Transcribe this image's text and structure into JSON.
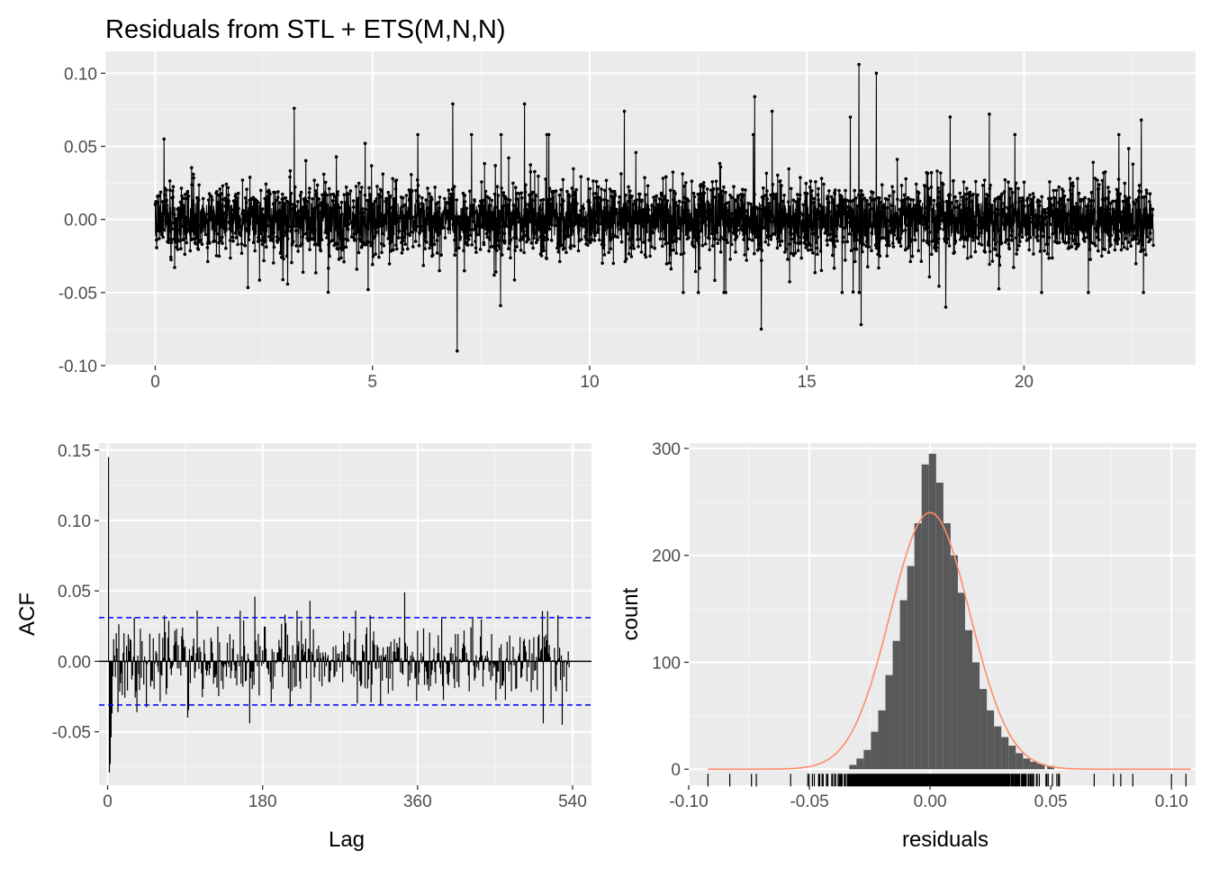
{
  "title": "Residuals from STL +  ETS(M,N,N)",
  "colors": {
    "panel_bg": "#ebebeb",
    "grid_major": "#ffffff",
    "grid_minor": "#f5f5f5",
    "series": "#000000",
    "ci_line": "#0000ff",
    "histogram_fill": "#595959",
    "density": "#ff8c69",
    "tick_text": "#4d4d4d"
  },
  "chart_data": [
    {
      "id": "residuals_series",
      "type": "line",
      "title": "Residuals from STL +  ETS(M,N,N)",
      "xlabel": "",
      "ylabel": "",
      "xlim": [
        -1.15,
        23.95
      ],
      "ylim": [
        -0.1,
        0.115
      ],
      "x_ticks": [
        0,
        5,
        10,
        15,
        20
      ],
      "x_tick_labels": [
        "0",
        "5",
        "10",
        "15",
        "20"
      ],
      "y_ticks": [
        -0.1,
        -0.05,
        0.0,
        0.05,
        0.1
      ],
      "y_tick_labels": [
        "-0.10",
        "-0.05",
        "0.00",
        "0.05",
        "0.10"
      ],
      "grid": true,
      "markers": true,
      "n_points": 5000,
      "x_range": [
        0,
        22.98
      ],
      "typical_spread": 0.02,
      "notable_points": [
        {
          "x": 0.2,
          "y": 0.055
        },
        {
          "x": 3.2,
          "y": 0.076
        },
        {
          "x": 4.9,
          "y": -0.048
        },
        {
          "x": 6.85,
          "y": 0.079
        },
        {
          "x": 6.95,
          "y": -0.09
        },
        {
          "x": 7.95,
          "y": -0.059
        },
        {
          "x": 8.5,
          "y": 0.079
        },
        {
          "x": 10.8,
          "y": 0.074
        },
        {
          "x": 13.8,
          "y": 0.084
        },
        {
          "x": 13.95,
          "y": -0.075
        },
        {
          "x": 14.2,
          "y": 0.074
        },
        {
          "x": 16.0,
          "y": 0.07
        },
        {
          "x": 16.2,
          "y": 0.106
        },
        {
          "x": 16.25,
          "y": -0.072
        },
        {
          "x": 16.6,
          "y": 0.1
        },
        {
          "x": 18.2,
          "y": -0.06
        },
        {
          "x": 18.3,
          "y": 0.07
        },
        {
          "x": 19.2,
          "y": 0.072
        },
        {
          "x": 22.7,
          "y": 0.068
        },
        {
          "x": 22.75,
          "y": -0.05
        }
      ]
    },
    {
      "id": "acf",
      "type": "bar",
      "xlabel": "Lag",
      "ylabel": "ACF",
      "xlim": [
        -10,
        562
      ],
      "ylim": [
        -0.088,
        0.155
      ],
      "x_ticks": [
        0,
        180,
        360,
        540
      ],
      "x_tick_labels": [
        "0",
        "180",
        "360",
        "540"
      ],
      "y_ticks": [
        -0.05,
        0.0,
        0.05,
        0.1,
        0.15
      ],
      "y_tick_labels": [
        "-0.05",
        "0.00",
        "0.05",
        "0.10",
        "0.15"
      ],
      "ci": [
        -0.031,
        0.031
      ],
      "grid": true,
      "max_lag": 536,
      "notable_values": [
        {
          "lag": 1,
          "acf": 0.145
        },
        {
          "lag": 2,
          "acf": -0.079
        },
        {
          "lag": 3,
          "acf": -0.073
        },
        {
          "lag": 4,
          "acf": -0.054
        },
        {
          "lag": 5,
          "acf": -0.037
        },
        {
          "lag": 31,
          "acf": 0.031
        },
        {
          "lag": 93,
          "acf": -0.04
        },
        {
          "lag": 165,
          "acf": -0.044
        },
        {
          "lag": 171,
          "acf": 0.046
        },
        {
          "lag": 235,
          "acf": 0.043
        },
        {
          "lag": 345,
          "acf": 0.049
        },
        {
          "lag": 506,
          "acf": -0.044
        },
        {
          "lag": 528,
          "acf": -0.045
        }
      ]
    },
    {
      "id": "histogram",
      "type": "bar",
      "xlabel": "residuals",
      "ylabel": "count",
      "xlim": [
        -0.1,
        0.11
      ],
      "ylim": [
        -15,
        305
      ],
      "x_ticks": [
        -0.1,
        -0.05,
        0.0,
        0.05,
        0.1
      ],
      "x_tick_labels": [
        "-0.10",
        "-0.05",
        "0.00",
        "0.05",
        "0.10"
      ],
      "y_ticks": [
        0,
        100,
        200,
        300
      ],
      "y_tick_labels": [
        "0",
        "100",
        "200",
        "300"
      ],
      "grid": true,
      "bins": [
        {
          "x": -0.032,
          "count": 4
        },
        {
          "x": -0.029,
          "count": 10
        },
        {
          "x": -0.026,
          "count": 18
        },
        {
          "x": -0.023,
          "count": 35
        },
        {
          "x": -0.02,
          "count": 55
        },
        {
          "x": -0.017,
          "count": 88
        },
        {
          "x": -0.014,
          "count": 120
        },
        {
          "x": -0.011,
          "count": 158
        },
        {
          "x": -0.008,
          "count": 190
        },
        {
          "x": -0.005,
          "count": 230
        },
        {
          "x": -0.002,
          "count": 285
        },
        {
          "x": 0.001,
          "count": 295
        },
        {
          "x": 0.004,
          "count": 268
        },
        {
          "x": 0.007,
          "count": 230
        },
        {
          "x": 0.01,
          "count": 200
        },
        {
          "x": 0.013,
          "count": 165
        },
        {
          "x": 0.016,
          "count": 130
        },
        {
          "x": 0.019,
          "count": 100
        },
        {
          "x": 0.022,
          "count": 75
        },
        {
          "x": 0.025,
          "count": 55
        },
        {
          "x": 0.028,
          "count": 40
        },
        {
          "x": 0.031,
          "count": 30
        },
        {
          "x": 0.034,
          "count": 22
        },
        {
          "x": 0.037,
          "count": 15
        },
        {
          "x": 0.04,
          "count": 10
        },
        {
          "x": 0.043,
          "count": 7
        },
        {
          "x": 0.046,
          "count": 5
        },
        {
          "x": 0.05,
          "count": 3
        }
      ],
      "density": {
        "mean": 0.0,
        "sd": 0.0165,
        "peak_count": 240
      },
      "rug": true,
      "rug_range": [
        -0.092,
        0.108
      ]
    }
  ]
}
